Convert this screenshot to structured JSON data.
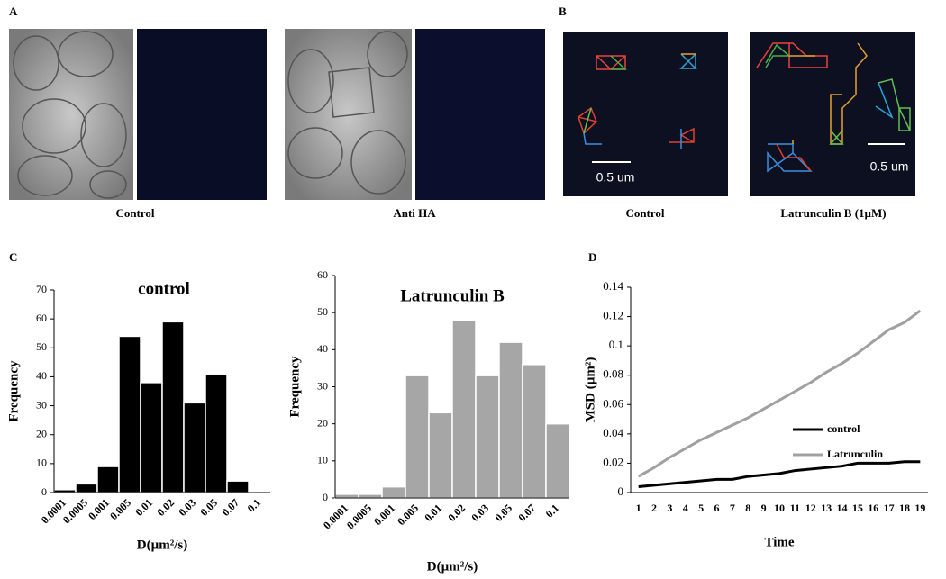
{
  "figure": {
    "panel_labels": [
      "A",
      "B",
      "C",
      "D"
    ],
    "captions": [
      "Control",
      "Anti HA",
      "Control",
      "Latrunculin  B (1µM)"
    ],
    "scale_bars": [
      "0.5 um",
      "0.5 um"
    ]
  },
  "chart_data": [
    {
      "type": "bar",
      "title": "control",
      "x_label": "D(µm²/s)",
      "y_label": "Frequency",
      "categories": [
        "0.0001",
        "0.0005",
        "0.001",
        "0.005",
        "0.01",
        "0.02",
        "0.03",
        "0.05",
        "0.07",
        "0.1"
      ],
      "values": [
        1,
        3,
        9,
        54,
        38,
        59,
        31,
        41,
        4,
        0
      ],
      "color": "#000000",
      "ylim": [
        0,
        70
      ],
      "yticks": [
        0,
        10,
        20,
        30,
        40,
        50,
        60,
        70
      ]
    },
    {
      "type": "bar",
      "title": "Latrunculin  B",
      "x_label": "D(µm²/s)",
      "y_label": "Frequency",
      "categories": [
        "0.0001",
        "0.0005",
        "0.001",
        "0.005",
        "0.01",
        "0.02",
        "0.03",
        "0.05",
        "0.07",
        "0.1"
      ],
      "values": [
        1,
        1,
        3,
        33,
        23,
        48,
        33,
        42,
        36,
        20
      ],
      "color": "#a6a6a6",
      "ylim": [
        0,
        60
      ],
      "yticks": [
        0,
        10,
        20,
        30,
        40,
        50,
        60
      ]
    },
    {
      "type": "line",
      "x_label": "Time",
      "y_label": "MSD (µm²)",
      "categories": [
        "1",
        "2",
        "3",
        "4",
        "5",
        "6",
        "7",
        "8",
        "9",
        "10",
        "11",
        "12",
        "13",
        "14",
        "15",
        "16",
        "17",
        "18",
        "19"
      ],
      "series": [
        {
          "name": "control",
          "color": "#000000",
          "values": [
            0.004,
            0.005,
            0.006,
            0.007,
            0.008,
            0.009,
            0.009,
            0.011,
            0.012,
            0.013,
            0.015,
            0.016,
            0.017,
            0.018,
            0.02,
            0.02,
            0.02,
            0.021,
            0.021
          ]
        },
        {
          "name": "Latrunculin",
          "color": "#a0a0a0",
          "values": [
            0.011,
            0.017,
            0.024,
            0.03,
            0.036,
            0.041,
            0.046,
            0.051,
            0.057,
            0.063,
            0.069,
            0.075,
            0.082,
            0.088,
            0.095,
            0.103,
            0.111,
            0.116,
            0.124
          ]
        }
      ],
      "ylim": [
        0,
        0.14
      ],
      "yticks": [
        0,
        0.02,
        0.04,
        0.06,
        0.08,
        0.1,
        0.12,
        0.14
      ]
    }
  ]
}
